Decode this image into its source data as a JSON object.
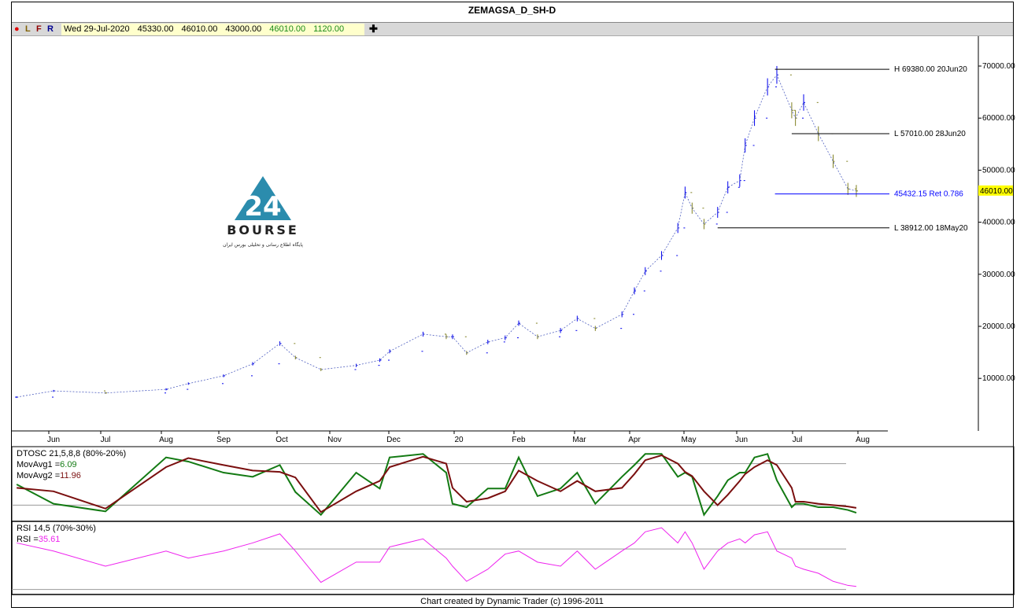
{
  "window": {
    "title": "ZEMAGSA_D_SH-D"
  },
  "infobar": {
    "dot_color": "#e00000",
    "letters": [
      "L",
      "F",
      "R"
    ],
    "date": "Wed 29-Jul-2020",
    "open": "45330.00",
    "high": "46010.00",
    "low": "43000.00",
    "close": "46010.00",
    "volume": "1120.00",
    "crosshair_icon": "plus-icon"
  },
  "logo": {
    "text": "BOURSE",
    "number": "24",
    "subtitle": "پایگاه اطلاع رسانی و تحلیلی بورس ایران",
    "color": "#2b8cad"
  },
  "footer": "Chart created by Dynamic Trader  (c) 1996-2011",
  "chart_data": [
    {
      "type": "ohlc",
      "title": "ZEMAGSA_D_SH-D",
      "ylim": [
        0,
        76000
      ],
      "y_ticks": [
        "10000.00",
        "20000.00",
        "30000.00",
        "40000.00",
        "50000.00",
        "60000.00",
        "70000.00"
      ],
      "x_ticks": [
        "Jun",
        "Jul",
        "Aug",
        "Sep",
        "Oct",
        "Nov",
        "Dec",
        "20",
        "Feb",
        "Mar",
        "Apr",
        "May",
        "Jun",
        "Jul",
        "Aug"
      ],
      "last_price_label": "46010.00",
      "colors": {
        "up": "#0000ee",
        "down": "#808020",
        "last_price_bg": "#ffff00"
      },
      "dates": [
        "2019-05-10",
        "2019-06-01",
        "2019-07-01",
        "2019-08-01",
        "2019-08-13",
        "2019-09-01",
        "2019-09-16",
        "2019-09-30",
        "2019-10-09",
        "2019-10-24",
        "2019-11-12",
        "2019-11-24",
        "2019-11-29",
        "2019-12-15",
        "2019-12-26",
        "2019-12-29",
        "2020-01-05",
        "2020-01-16",
        "2020-01-25",
        "2020-02-01",
        "2020-02-10",
        "2020-02-21",
        "2020-02-29",
        "2020-03-10",
        "2020-03-25",
        "2020-04-01",
        "2020-04-07",
        "2020-04-16",
        "2020-04-25",
        "2020-04-29",
        "2020-05-03",
        "2020-05-10",
        "2020-05-18",
        "2020-05-24",
        "2020-05-31",
        "2020-06-03",
        "2020-06-08",
        "2020-06-15",
        "2020-06-20",
        "2020-06-28",
        "2020-06-30",
        "2020-07-04",
        "2020-07-11",
        "2020-07-18",
        "2020-07-25",
        "2020-07-29"
      ],
      "close": [
        6400,
        7600,
        7200,
        7900,
        9000,
        10500,
        12800,
        16700,
        14000,
        11700,
        12500,
        13500,
        15200,
        18500,
        18000,
        18000,
        14900,
        17000,
        17800,
        20600,
        18000,
        19200,
        21500,
        19600,
        22300,
        26800,
        30600,
        33600,
        38900,
        45700,
        42700,
        39650,
        41900,
        46700,
        48000,
        54750,
        60000,
        66000,
        68300,
        61500,
        60000,
        63000,
        57000,
        51700,
        46400,
        46010
      ],
      "annotations": [
        {
          "label": "H 69380.00 20Jun20",
          "value": 69380,
          "from": "2020-06-19",
          "color": "#000000"
        },
        {
          "label": "L 57010.00 28Jun20",
          "value": 57010,
          "from": "2020-06-28",
          "color": "#000000"
        },
        {
          "label": "45432.15 Ret 0.786",
          "value": 45432.15,
          "from": "2020-06-19",
          "color": "#0000ff"
        },
        {
          "label": "L 38912.00 18May20",
          "value": 38912,
          "from": "2020-05-18",
          "color": "#000000"
        }
      ]
    },
    {
      "type": "line",
      "title": "DTOSC 21,5,8,8 (80%-20%)",
      "ylim": [
        0,
        100
      ],
      "levels": [
        80,
        20
      ],
      "series": [
        {
          "name": "MovAvg1",
          "label": "MovAvg1 =",
          "current": "6.09",
          "color": "#137a13",
          "values": [
            50,
            22,
            11,
            89,
            83,
            67,
            61,
            78,
            39,
            6,
            67,
            44,
            89,
            94,
            67,
            22,
            17,
            44,
            44,
            89,
            33,
            44,
            67,
            22,
            61,
            78,
            94,
            94,
            61,
            67,
            61,
            6,
            33,
            56,
            67,
            67,
            89,
            94,
            56,
            17,
            22,
            22,
            17,
            17,
            13,
            9
          ]
        },
        {
          "name": "MovAvg2",
          "label": "MovAvg2 =",
          "current": "11.96",
          "color": "#7a0f0f",
          "values": [
            45,
            40,
            15,
            75,
            88,
            78,
            70,
            68,
            60,
            10,
            40,
            55,
            75,
            90,
            80,
            45,
            25,
            30,
            40,
            70,
            55,
            40,
            55,
            40,
            45,
            65,
            85,
            92,
            80,
            68,
            62,
            40,
            20,
            35,
            55,
            65,
            75,
            85,
            78,
            45,
            25,
            25,
            22,
            20,
            18,
            16
          ]
        }
      ]
    },
    {
      "type": "line",
      "title": "RSI 14,5 (70%-30%)",
      "ylim": [
        25,
        95
      ],
      "levels": [
        70,
        30
      ],
      "series": [
        {
          "name": "RSI",
          "label": "RSI =",
          "current": "35.61",
          "color": "#ee22ee",
          "values": [
            76,
            68,
            53,
            68,
            61,
            68,
            76,
            85,
            68,
            37,
            57,
            57,
            72,
            80,
            61,
            53,
            38,
            50,
            65,
            68,
            57,
            53,
            68,
            50,
            68,
            76,
            87,
            91,
            76,
            87,
            76,
            50,
            68,
            76,
            80,
            76,
            84,
            87,
            68,
            61,
            53,
            50,
            46,
            38,
            34,
            33
          ]
        }
      ]
    }
  ]
}
